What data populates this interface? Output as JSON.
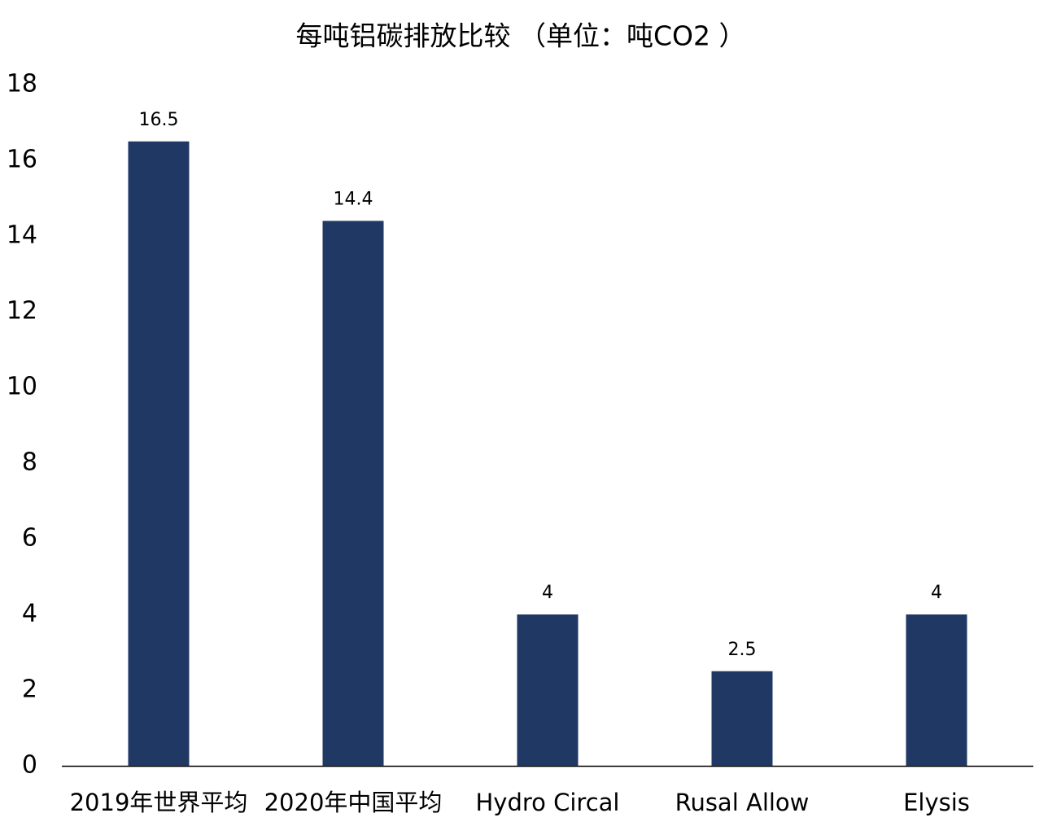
{
  "chart_data": {
    "type": "bar",
    "title": "每吨铝碳排放比较 （单位：吨CO2 ）",
    "categories": [
      "2019年世界平均",
      "2020年中国平均",
      "Hydro Circal",
      "Rusal Allow",
      "Elysis"
    ],
    "values": [
      16.5,
      14.4,
      4,
      2.5,
      4
    ],
    "color": "#203864",
    "ylim": [
      0,
      18
    ],
    "yticks": [
      0,
      2,
      4,
      6,
      8,
      10,
      12,
      14,
      16,
      18
    ],
    "grid": false,
    "data_labels": true
  }
}
